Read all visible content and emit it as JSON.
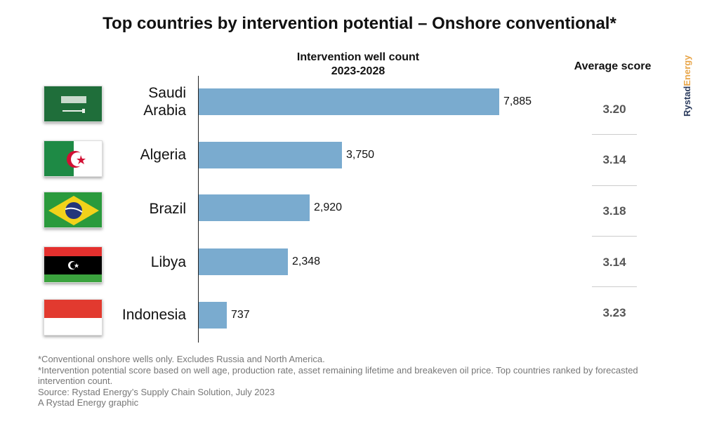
{
  "title": "Top countries by intervention potential – Onshore conventional*",
  "bar_header": [
    "Intervention well count",
    "2023-2028"
  ],
  "avg_header": "Average score",
  "brand": {
    "part1": "Rystad",
    "part2": "Energy"
  },
  "colors": {
    "bar": "#7aabcf",
    "brand_dark": "#2a3a5c",
    "brand_accent": "#e8a64a"
  },
  "countries": [
    {
      "name_lines": [
        "Saudi",
        "Arabia"
      ],
      "flag_icon": "saudi-arabia-flag-icon"
    },
    {
      "name_lines": [
        "Algeria"
      ],
      "flag_icon": "algeria-flag-icon"
    },
    {
      "name_lines": [
        "Brazil"
      ],
      "flag_icon": "brazil-flag-icon"
    },
    {
      "name_lines": [
        "Libya"
      ],
      "flag_icon": "libya-flag-icon"
    },
    {
      "name_lines": [
        "Indonesia"
      ],
      "flag_icon": "indonesia-flag-icon"
    }
  ],
  "chart_data": {
    "type": "bar",
    "orientation": "horizontal",
    "title": "Top countries by intervention potential – Onshore conventional*",
    "categories": [
      "Saudi Arabia",
      "Algeria",
      "Brazil",
      "Libya",
      "Indonesia"
    ],
    "values": [
      7885,
      3750,
      2920,
      2348,
      737
    ],
    "value_labels": [
      "7,885",
      "3,750",
      "2,920",
      "2,348",
      "737"
    ],
    "average_scores": [
      "3.20",
      "3.14",
      "3.18",
      "3.14",
      "3.23"
    ],
    "xlabel": "Intervention well count 2023-2028",
    "ylabel": "",
    "xlim": [
      0,
      7885
    ],
    "grid": false,
    "legend": "none"
  },
  "footnotes": [
    "*Conventional onshore wells only. Excludes Russia and North America.",
    "*Intervention potential score based on well age, production rate, asset remaining lifetime and breakeven oil price. Top countries ranked by forecasted intervention count.",
    "Source: Rystad Energy’s Supply Chain Solution, July 2023",
    "A Rystad Energy graphic"
  ]
}
